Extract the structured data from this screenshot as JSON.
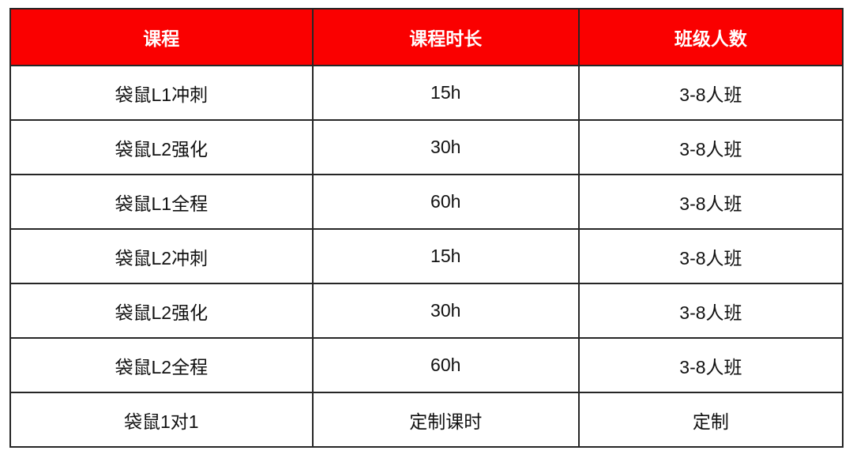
{
  "table": {
    "accent_color": "#fa0000",
    "border_color": "#262626",
    "header_text_color": "#ffffff",
    "headers": [
      "课程",
      "课程时长",
      "班级人数"
    ],
    "rows": [
      {
        "course": "袋鼠L1冲刺",
        "duration": "15h",
        "class_size": "3-8人班"
      },
      {
        "course": "袋鼠L2强化",
        "duration": "30h",
        "class_size": "3-8人班"
      },
      {
        "course": "袋鼠L1全程",
        "duration": "60h",
        "class_size": "3-8人班"
      },
      {
        "course": "袋鼠L2冲刺",
        "duration": "15h",
        "class_size": "3-8人班"
      },
      {
        "course": "袋鼠L2强化",
        "duration": "30h",
        "class_size": "3-8人班"
      },
      {
        "course": "袋鼠L2全程",
        "duration": "60h",
        "class_size": "3-8人班"
      },
      {
        "course": "袋鼠1对1",
        "duration": "定制课时",
        "class_size": "定制"
      }
    ]
  }
}
